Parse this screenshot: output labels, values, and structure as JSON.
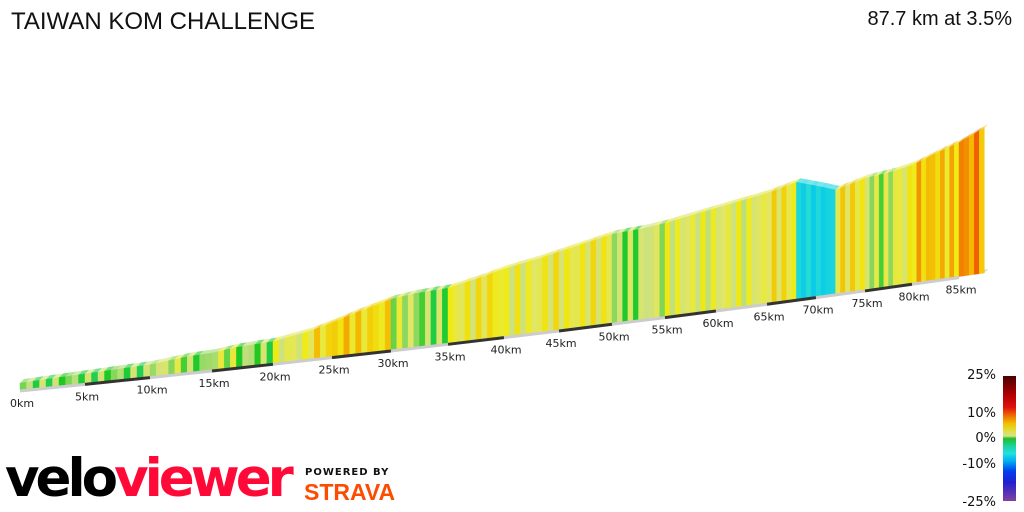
{
  "header": {
    "title": "TAIWAN KOM CHALLENGE",
    "summary": "87.7 km at 3.5%"
  },
  "chart_data": {
    "type": "area",
    "title": "TAIWAN KOM CHALLENGE",
    "xlabel": "",
    "ylabel": "",
    "x_unit": "km",
    "xlim": [
      0,
      87.7
    ],
    "x_ticks": [
      "0km",
      "5km",
      "10km",
      "15km",
      "20km",
      "25km",
      "30km",
      "35km",
      "40km",
      "45km",
      "50km",
      "55km",
      "60km",
      "65km",
      "70km",
      "75km",
      "80km",
      "85km"
    ],
    "profile": {
      "distance_km": [
        0,
        2,
        5,
        8,
        10,
        13,
        15,
        17,
        20,
        23,
        25,
        27,
        30,
        32,
        35,
        38,
        40,
        43,
        45,
        48,
        50,
        53,
        55,
        58,
        60,
        63,
        65,
        68,
        70,
        72,
        75,
        78,
        80,
        83,
        85,
        87.7
      ],
      "elevation_m": [
        0,
        20,
        50,
        80,
        100,
        180,
        200,
        260,
        300,
        420,
        550,
        700,
        900,
        960,
        1000,
        1150,
        1270,
        1400,
        1500,
        1650,
        1750,
        1800,
        1860,
        1980,
        2060,
        2180,
        2260,
        2430,
        2300,
        2160,
        2340,
        2420,
        2510,
        2750,
        2900,
        3170
      ]
    },
    "color_scale": {
      "labels": [
        "25%",
        "10%",
        "0%",
        "-10%",
        "-25%"
      ],
      "range": [
        -25,
        25
      ]
    },
    "grid": false,
    "legend": "right"
  },
  "branding": {
    "logo_part1": "velo",
    "logo_part2": "viewer",
    "powered_by": "POWERED BY",
    "strava": "STRAVA",
    "logo_color": "#ff0a38",
    "strava_color": "#fc4c02"
  }
}
